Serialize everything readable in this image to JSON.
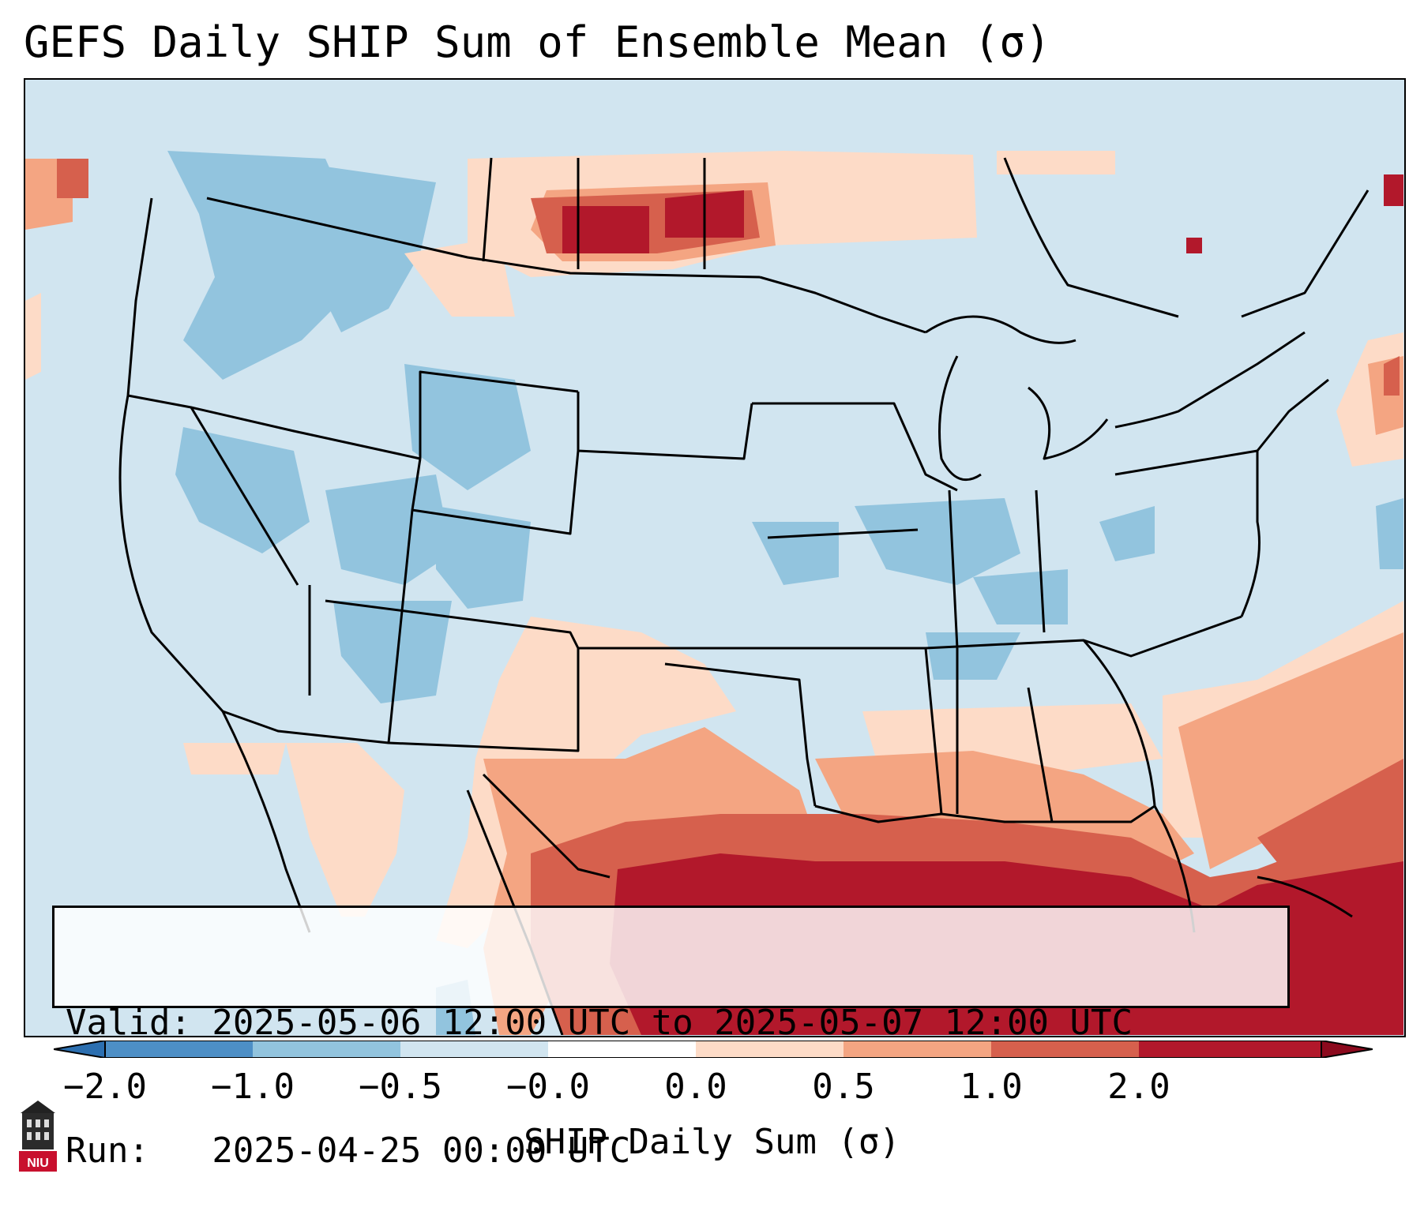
{
  "title": "GEFS Daily SHIP Sum of Ensemble Mean (σ)",
  "info": {
    "valid_line": "Valid: 2025-05-06 12:00 UTC to 2025-05-07 12:00 UTC",
    "run_line": "Run:   2025-04-25 00:00 UTC"
  },
  "colorbar": {
    "label": "SHIP Daily Sum (σ)",
    "ticks": [
      "−2.0",
      "−1.0",
      "−0.5",
      "−0.0",
      "0.0",
      "0.5",
      "1.0",
      "2.0"
    ],
    "colors": [
      "#4d8fc6",
      "#92c4de",
      "#d1e5f0",
      "#ffffff",
      "#fddbc7",
      "#f4a582",
      "#d6604d",
      "#b2182b"
    ],
    "extend": "both"
  },
  "logo": {
    "text": "NIU",
    "icon": "university-building-icon"
  },
  "map": {
    "region": "CONUS",
    "ocean_color": "#cfe3ef"
  }
}
